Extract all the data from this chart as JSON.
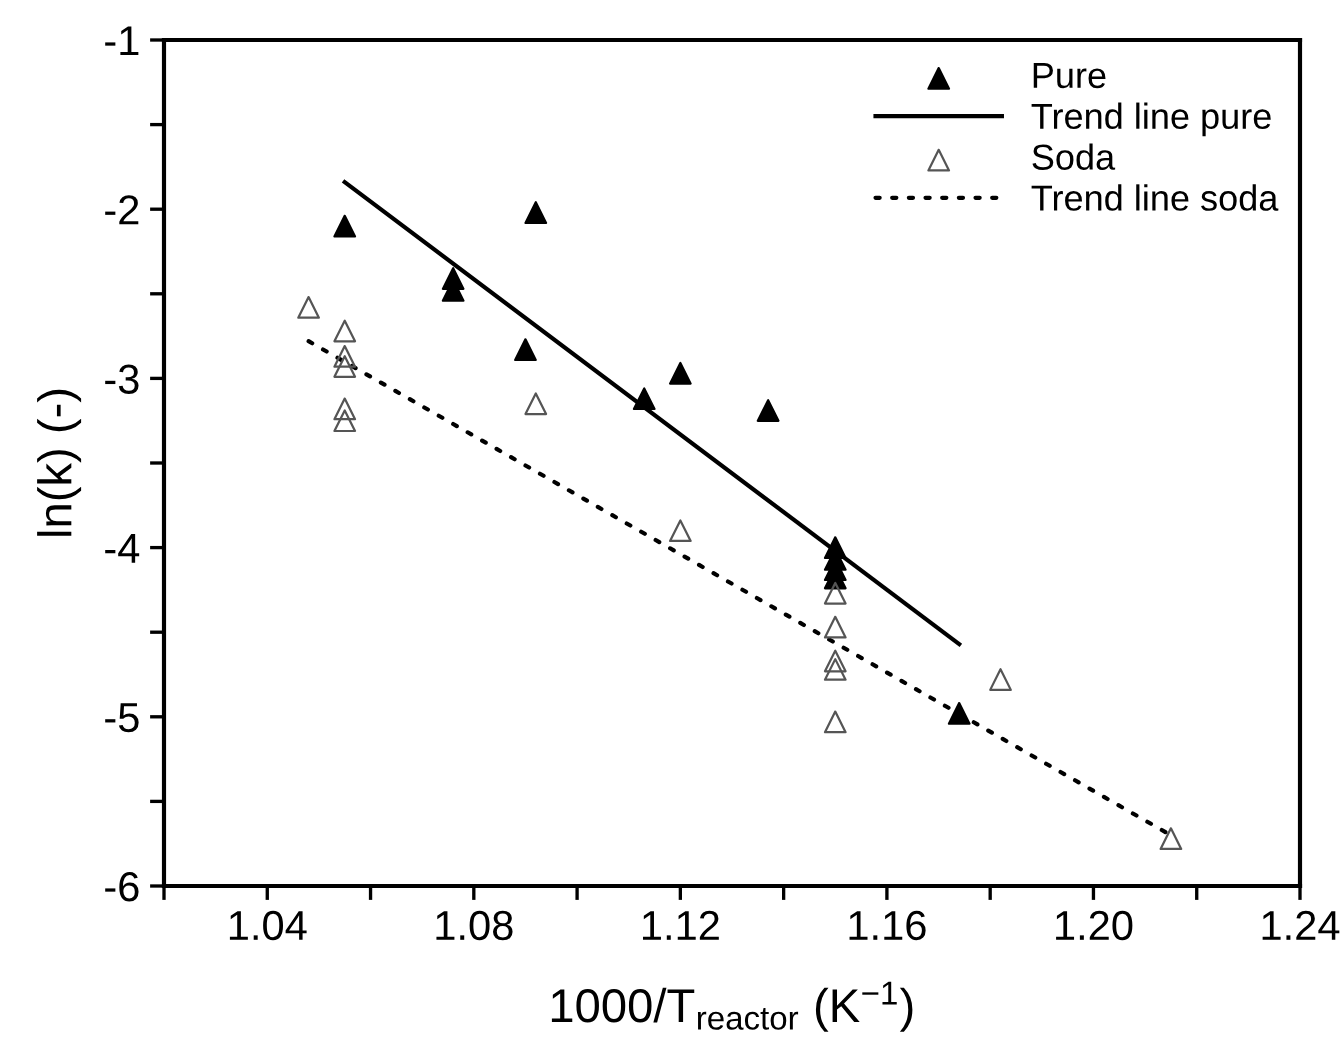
{
  "chart_data": {
    "type": "scatter",
    "xlabel": "1000/T$_{reactor}$ (K$^{−1}$)",
    "ylabel": "ln(k) (-)",
    "xlim": [
      1.02,
      1.24
    ],
    "ylim": [
      -6,
      -1
    ],
    "xticks": [
      {
        "value": 1.02,
        "label": null
      },
      1.04,
      {
        "value": 1.06,
        "label": null
      },
      1.08,
      {
        "value": 1.1,
        "label": null
      },
      1.12,
      {
        "value": 1.14,
        "label": null
      },
      1.16,
      {
        "value": 1.18,
        "label": null
      },
      {
        "value": 1.2,
        "label": "1.20"
      },
      {
        "value": 1.22,
        "label": null
      },
      1.24
    ],
    "yticks": [
      -6,
      {
        "value": -5.5,
        "label": null
      },
      -5,
      {
        "value": -4.5,
        "label": null
      },
      -4,
      {
        "value": -3.5,
        "label": null
      },
      -3,
      {
        "value": -2.5,
        "label": null
      },
      -2,
      {
        "value": -1.5,
        "label": null
      },
      -1
    ],
    "grid": false,
    "legend": "top right",
    "series": [
      {
        "name": "Pure",
        "marker": "triangle",
        "color": "#000000",
        "x": [
          1.055,
          1.076,
          1.076,
          1.09,
          1.092,
          1.113,
          1.12,
          1.137,
          1.15,
          1.15,
          1.15,
          1.15,
          1.174
        ],
        "values": [
          -2.1,
          -2.41,
          -2.48,
          -2.83,
          -2.02,
          -3.12,
          -2.97,
          -3.19,
          -4.0,
          -4.07,
          -4.13,
          -4.18,
          -4.98
        ]
      },
      {
        "name": "Trend line pure",
        "type": "line",
        "line_style": "solid",
        "color": "#000000",
        "x": [
          1.055,
          1.174
        ],
        "values": [
          -1.84,
          -4.57
        ]
      },
      {
        "name": "Soda",
        "marker": "triangle",
        "color": "#555555",
        "x": [
          1.048,
          1.055,
          1.055,
          1.055,
          1.055,
          1.055,
          1.092,
          1.12,
          1.15,
          1.15,
          1.15,
          1.15,
          1.15,
          1.182,
          1.215
        ],
        "values": [
          -2.58,
          -2.72,
          -2.87,
          -2.93,
          -3.18,
          -3.25,
          -3.15,
          -3.9,
          -4.27,
          -4.47,
          -4.67,
          -4.72,
          -5.03,
          -4.78,
          -5.72
        ]
      },
      {
        "name": "Trend line soda",
        "type": "line",
        "line_style": "dotted",
        "color": "#000000",
        "x": [
          1.048,
          1.215
        ],
        "values": [
          -2.78,
          -5.7
        ]
      }
    ]
  }
}
